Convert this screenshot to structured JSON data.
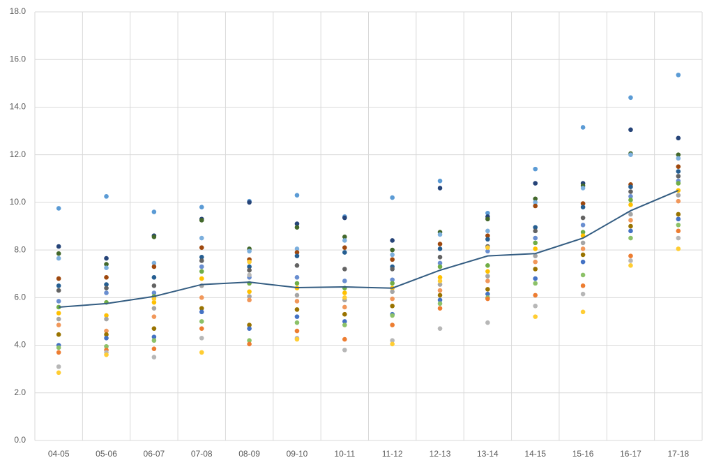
{
  "chart_data": {
    "type": "line",
    "categories": [
      "04-05",
      "05-06",
      "06-07",
      "07-08",
      "08-09",
      "09-10",
      "10-11",
      "11-12",
      "12-13",
      "13-14",
      "14-15",
      "15-16",
      "16-17",
      "17-18"
    ],
    "ylim": [
      0,
      18
    ],
    "yticks": [
      {
        "value": 0,
        "label": "0.0"
      },
      {
        "value": 2,
        "label": "2.0"
      },
      {
        "value": 4,
        "label": "4.0"
      },
      {
        "value": 6,
        "label": "6.0"
      },
      {
        "value": 8,
        "label": "8.0"
      },
      {
        "value": 10,
        "label": "10.0"
      },
      {
        "value": 12,
        "label": "12.0"
      },
      {
        "value": 14,
        "label": "14.0"
      },
      {
        "value": 16,
        "label": "16.0"
      },
      {
        "value": 18,
        "label": "18.0"
      }
    ],
    "grid": true,
    "series": [
      {
        "type": "scatter",
        "color": "#5b9bd5",
        "values": [
          9.75,
          10.25,
          9.6,
          9.8,
          10.05,
          10.3,
          9.4,
          10.2,
          10.9,
          9.55,
          11.4,
          13.15,
          14.4,
          15.35
        ]
      },
      {
        "type": "scatter",
        "color": "#264478",
        "values": [
          8.15,
          7.65,
          8.6,
          9.3,
          10.0,
          9.1,
          9.35,
          8.4,
          10.6,
          9.4,
          10.8,
          10.8,
          13.05,
          12.7
        ]
      },
      {
        "type": "scatter",
        "color": "#43682b",
        "values": [
          7.85,
          7.4,
          8.55,
          9.25,
          8.05,
          8.95,
          8.55,
          8.0,
          8.75,
          9.3,
          10.15,
          10.7,
          12.05,
          12.0
        ]
      },
      {
        "type": "scatter",
        "color": "#7cafdd",
        "values": [
          7.65,
          7.25,
          7.45,
          8.5,
          7.95,
          8.05,
          8.4,
          7.8,
          8.65,
          8.8,
          10.0,
          10.6,
          12.0,
          11.85
        ]
      },
      {
        "type": "scatter",
        "color": "#9e480e",
        "values": [
          6.8,
          6.85,
          7.3,
          8.1,
          7.6,
          7.9,
          8.1,
          7.6,
          8.25,
          8.6,
          9.85,
          9.95,
          10.75,
          11.5
        ]
      },
      {
        "type": "scatter",
        "color": "#255e91",
        "values": [
          6.5,
          6.55,
          6.85,
          7.7,
          7.3,
          7.75,
          7.9,
          7.3,
          8.05,
          8.45,
          8.95,
          9.8,
          10.65,
          11.3
        ]
      },
      {
        "type": "scatter",
        "color": "#636363",
        "values": [
          6.3,
          6.4,
          6.5,
          7.55,
          7.15,
          7.35,
          7.2,
          7.2,
          7.7,
          8.15,
          8.8,
          9.35,
          10.45,
          11.1
        ]
      },
      {
        "type": "scatter",
        "color": "#698ed0",
        "values": [
          5.85,
          6.2,
          6.2,
          7.3,
          6.85,
          6.85,
          6.7,
          6.75,
          7.45,
          7.95,
          8.5,
          9.05,
          10.25,
          10.9
        ]
      },
      {
        "type": "scatter",
        "color": "#70ad47",
        "values": [
          5.6,
          5.8,
          6.05,
          7.1,
          6.6,
          6.6,
          6.4,
          6.6,
          7.3,
          7.35,
          8.3,
          8.75,
          10.1,
          10.8
        ]
      },
      {
        "type": "scatter",
        "color": "#ffc000",
        "values": [
          5.35,
          5.25,
          5.8,
          6.8,
          6.25,
          6.4,
          6.2,
          6.4,
          6.85,
          7.1,
          8.05,
          8.6,
          9.9,
          10.5
        ]
      },
      {
        "type": "scatter",
        "color": "#a5a5a5",
        "values": [
          5.1,
          5.1,
          5.55,
          6.5,
          6.05,
          6.1,
          5.9,
          6.25,
          6.55,
          6.9,
          7.75,
          8.3,
          9.5,
          10.3
        ]
      },
      {
        "type": "scatter",
        "color": "#f1975a",
        "values": [
          4.85,
          4.6,
          5.2,
          6.0,
          5.9,
          5.85,
          5.6,
          5.95,
          6.3,
          6.7,
          7.5,
          8.05,
          9.25,
          10.05
        ]
      },
      {
        "type": "scatter",
        "color": "#997300",
        "values": [
          4.45,
          4.45,
          4.7,
          5.55,
          4.85,
          5.5,
          5.3,
          5.65,
          6.1,
          6.35,
          7.2,
          7.8,
          9.0,
          9.5
        ]
      },
      {
        "type": "scatter",
        "color": "#4472c4",
        "values": [
          4.0,
          4.3,
          4.35,
          5.4,
          4.7,
          5.2,
          5.0,
          5.3,
          5.9,
          6.15,
          6.8,
          7.5,
          8.8,
          9.3
        ]
      },
      {
        "type": "scatter",
        "color": "#8cc168",
        "values": [
          3.9,
          3.95,
          4.2,
          5.0,
          4.2,
          4.95,
          4.85,
          5.25,
          5.75,
          6.0,
          6.6,
          6.95,
          8.5,
          9.05
        ]
      },
      {
        "type": "scatter",
        "color": "#ed7d31",
        "values": [
          3.7,
          3.8,
          3.85,
          4.7,
          4.05,
          4.6,
          4.25,
          4.85,
          5.55,
          5.95,
          6.1,
          6.5,
          7.75,
          8.8
        ]
      },
      {
        "type": "scatter",
        "color": "#b7b7b7",
        "values": [
          3.1,
          3.7,
          3.5,
          4.3,
          6.95,
          4.3,
          3.8,
          4.2,
          4.7,
          4.95,
          5.65,
          6.15,
          7.55,
          8.5
        ]
      },
      {
        "type": "scatter",
        "color": "#ffcd33",
        "values": [
          2.85,
          3.6,
          5.95,
          3.7,
          7.5,
          4.25,
          6.0,
          4.05,
          6.7,
          8.1,
          5.2,
          5.4,
          7.35,
          8.05
        ]
      },
      {
        "type": "line",
        "color": "#345d82",
        "values": [
          5.6,
          5.75,
          6.05,
          6.55,
          6.65,
          6.42,
          6.45,
          6.4,
          7.15,
          7.75,
          7.85,
          8.5,
          9.65,
          10.5
        ]
      }
    ]
  }
}
